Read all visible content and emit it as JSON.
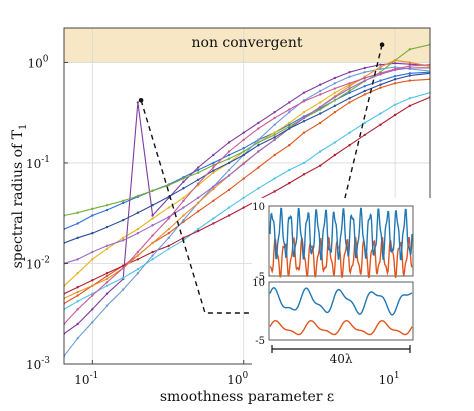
{
  "chart_data": {
    "type": "line",
    "xscale": "log",
    "yscale": "log",
    "xlim": [
      0.065,
      17
    ],
    "ylim": [
      0.001,
      2.2
    ],
    "xlabel": "smoothness parameter ε",
    "ylabel": "spectral radius of T",
    "ylabel_sub": "1",
    "grid": true,
    "legend": "none",
    "xticks": [
      {
        "v": 0.1,
        "b": "10",
        "e": "-1"
      },
      {
        "v": 1,
        "b": "10",
        "e": "0"
      },
      {
        "v": 10,
        "b": "10",
        "e": "1"
      }
    ],
    "yticks": [
      {
        "v": 0.001,
        "b": "10",
        "e": "-3"
      },
      {
        "v": 0.01,
        "b": "10",
        "e": "-2"
      },
      {
        "v": 0.1,
        "b": "10",
        "e": "-1"
      },
      {
        "v": 1,
        "b": "10",
        "e": "0"
      }
    ],
    "region": {
      "label": "non convergent",
      "y_from": 1.0,
      "color": "#f7e7c4"
    },
    "colors": [
      "#2f6fd6",
      "#e0551c",
      "#e8b41c",
      "#7e3b9f",
      "#76ad3a",
      "#4fc3e8",
      "#b01f36",
      "#6d9bd8",
      "#e8902a",
      "#9a68c8",
      "#2a4f9a",
      "#c85a9a"
    ],
    "x": [
      0.065,
      0.08,
      0.1,
      0.125,
      0.16,
      0.2,
      0.25,
      0.32,
      0.4,
      0.5,
      0.63,
      0.8,
      1.0,
      1.25,
      1.6,
      2.0,
      2.5,
      3.2,
      4.0,
      5.0,
      6.3,
      8.0,
      10.0,
      12.5,
      17.0
    ],
    "series": [
      {
        "values": [
          0.022,
          0.025,
          0.03,
          0.034,
          0.04,
          0.046,
          0.053,
          0.061,
          0.072,
          0.085,
          0.1,
          0.12,
          0.14,
          0.17,
          0.2,
          0.24,
          0.29,
          0.35,
          0.42,
          0.5,
          0.58,
          0.66,
          0.73,
          0.78,
          0.8
        ]
      },
      {
        "values": [
          0.004,
          0.0048,
          0.006,
          0.0075,
          0.0095,
          0.012,
          0.016,
          0.02,
          0.026,
          0.033,
          0.042,
          0.054,
          0.07,
          0.09,
          0.12,
          0.15,
          0.2,
          0.25,
          0.32,
          0.4,
          0.48,
          0.56,
          0.62,
          0.66,
          0.68
        ]
      },
      {
        "values": [
          0.006,
          0.008,
          0.011,
          0.014,
          0.018,
          0.022,
          0.028,
          0.036,
          0.045,
          0.06,
          0.08,
          0.1,
          0.13,
          0.16,
          0.2,
          0.25,
          0.32,
          0.4,
          0.5,
          0.6,
          0.7,
          0.78,
          0.85,
          0.88,
          0.9
        ]
      },
      {
        "values": [
          0.002,
          0.0025,
          0.0035,
          0.005,
          0.007,
          0.4,
          0.03,
          0.045,
          0.065,
          0.09,
          0.12,
          0.16,
          0.2,
          0.25,
          0.32,
          0.4,
          0.5,
          0.6,
          0.7,
          0.8,
          0.88,
          0.95,
          0.98,
          0.96,
          0.93
        ]
      },
      {
        "values": [
          0.03,
          0.032,
          0.035,
          0.038,
          0.042,
          0.047,
          0.053,
          0.06,
          0.07,
          0.08,
          0.095,
          0.11,
          0.13,
          0.16,
          0.19,
          0.23,
          0.28,
          0.34,
          0.42,
          0.52,
          0.65,
          0.8,
          1.05,
          1.35,
          1.5
        ]
      },
      {
        "values": [
          0.0035,
          0.0042,
          0.005,
          0.006,
          0.0072,
          0.0088,
          0.011,
          0.014,
          0.017,
          0.022,
          0.028,
          0.036,
          0.045,
          0.056,
          0.07,
          0.085,
          0.1,
          0.13,
          0.16,
          0.2,
          0.25,
          0.31,
          0.38,
          0.44,
          0.5
        ]
      },
      {
        "values": [
          0.005,
          0.0058,
          0.0068,
          0.008,
          0.0095,
          0.011,
          0.013,
          0.015,
          0.018,
          0.021,
          0.025,
          0.03,
          0.036,
          0.043,
          0.052,
          0.063,
          0.077,
          0.094,
          0.12,
          0.15,
          0.19,
          0.24,
          0.3,
          0.37,
          0.45
        ]
      },
      {
        "values": [
          0.0012,
          0.0018,
          0.0026,
          0.0038,
          0.0055,
          0.008,
          0.012,
          0.018,
          0.027,
          0.04,
          0.058,
          0.085,
          0.12,
          0.17,
          0.24,
          0.32,
          0.42,
          0.52,
          0.62,
          0.72,
          0.8,
          0.86,
          0.9,
          0.86,
          0.82
        ]
      },
      {
        "values": [
          0.0045,
          0.0052,
          0.006,
          0.007,
          0.009,
          0.012,
          0.016,
          0.022,
          0.03,
          0.04,
          0.055,
          0.075,
          0.1,
          0.13,
          0.17,
          0.22,
          0.28,
          0.36,
          0.46,
          0.58,
          0.72,
          0.9,
          1.05,
          1.0,
          0.92
        ]
      },
      {
        "values": [
          0.01,
          0.011,
          0.013,
          0.015,
          0.017,
          0.02,
          0.024,
          0.029,
          0.036,
          0.045,
          0.058,
          0.075,
          0.098,
          0.13,
          0.17,
          0.22,
          0.28,
          0.36,
          0.45,
          0.55,
          0.66,
          0.76,
          0.84,
          0.88,
          0.88
        ]
      },
      {
        "values": [
          0.016,
          0.018,
          0.02,
          0.023,
          0.027,
          0.032,
          0.038,
          0.046,
          0.056,
          0.068,
          0.084,
          0.1,
          0.12,
          0.15,
          0.18,
          0.22,
          0.26,
          0.31,
          0.37,
          0.44,
          0.52,
          0.6,
          0.68,
          0.74,
          0.78
        ]
      },
      {
        "values": [
          0.0025,
          0.0035,
          0.0048,
          0.0065,
          0.009,
          0.013,
          0.019,
          0.028,
          0.042,
          0.062,
          0.09,
          0.13,
          0.17,
          0.22,
          0.28,
          0.34,
          0.41,
          0.48,
          0.55,
          0.62,
          0.7,
          0.78,
          0.86,
          0.92,
          0.95
        ]
      }
    ],
    "inset": {
      "top": {
        "ylim": [
          -5,
          10
        ],
        "yticks": [
          10,
          -5
        ]
      },
      "bottom": {
        "ylim": [
          -5,
          10
        ],
        "yticks": [
          10,
          -5
        ],
        "scale_label": "40λ"
      }
    },
    "pointers": [
      {
        "x": 0.21,
        "y": 0.42
      },
      {
        "x": 8.2,
        "y": 1.5
      }
    ]
  }
}
